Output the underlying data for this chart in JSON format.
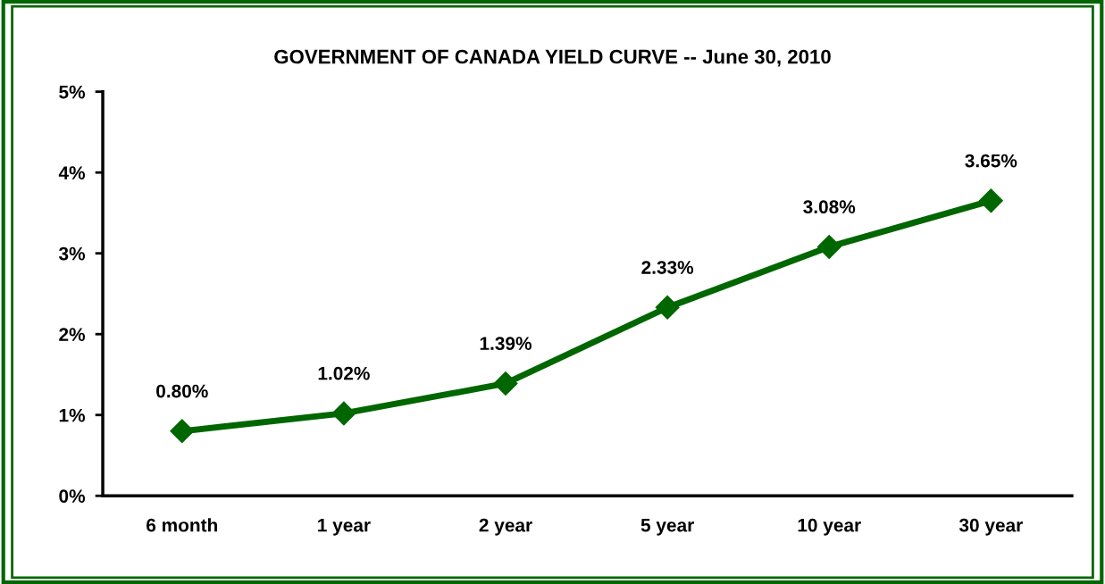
{
  "chart_data": {
    "type": "line",
    "title": "GOVERNMENT OF CANADA YIELD CURVE -- June 30, 2010",
    "categories": [
      "6 month",
      "1 year",
      "2 year",
      "5 year",
      "10 year",
      "30 year"
    ],
    "series": [
      {
        "color": "#006600",
        "values": [
          0.8,
          1.02,
          1.39,
          2.33,
          3.08,
          3.65
        ],
        "value_labels": [
          "0.80%",
          "1.02%",
          "1.39%",
          "2.33%",
          "3.08%",
          "3.65%"
        ]
      }
    ],
    "ylim": [
      0,
      5
    ],
    "yticks": [
      {
        "value": 0,
        "label": "0%"
      },
      {
        "value": 1,
        "label": "1%"
      },
      {
        "value": 2,
        "label": "2%"
      },
      {
        "value": 3,
        "label": "3%"
      },
      {
        "value": 4,
        "label": "4%"
      },
      {
        "value": 5,
        "label": "5%"
      }
    ],
    "marker": "diamond",
    "line_style": "solid",
    "grid": false,
    "legend": false
  }
}
